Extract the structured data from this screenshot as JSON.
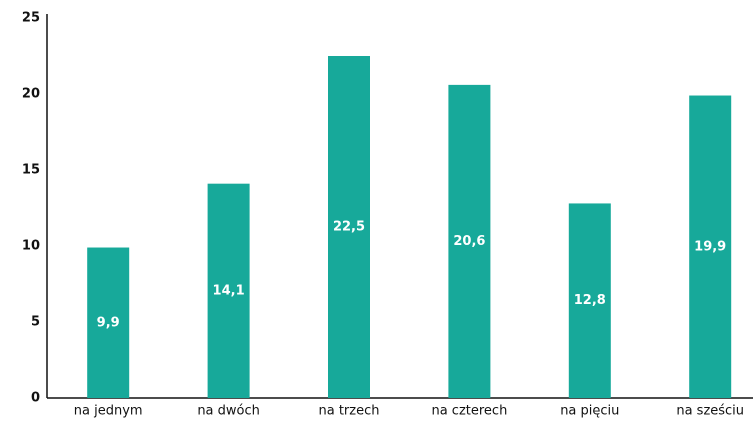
{
  "chart_data": {
    "type": "bar",
    "categories": [
      "na jednym",
      "na dwóch",
      "na trzech",
      "na czterech",
      "na pięciu",
      "na sześciu"
    ],
    "values": [
      9.9,
      14.1,
      22.5,
      20.6,
      12.8,
      19.9
    ],
    "value_labels": [
      "9,9",
      "14,1",
      "22,5",
      "20,6",
      "12,8",
      "19,9"
    ],
    "color": "#17a99a",
    "ylim": [
      0,
      25
    ],
    "yticks": [
      0,
      5,
      10,
      15,
      20,
      25
    ],
    "grid": false
  }
}
